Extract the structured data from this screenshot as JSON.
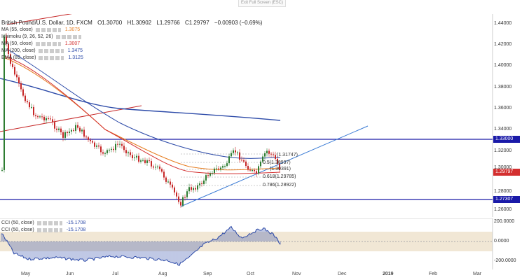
{
  "toolbar": {
    "exit_fullscreen": "Exit Full Screen (ESC)"
  },
  "header": {
    "symbol": "British Pound/U.S. Dollar, 1D, FXCM",
    "open": "O1.30700",
    "high": "H1.30902",
    "low": "L1.29766",
    "close": "C1.29797",
    "change": "−0.00903 (−0.69%)"
  },
  "legend": [
    {
      "label": "MA (55, close)",
      "value": "1.3075",
      "color": "#e67e22"
    },
    {
      "label": "Ichimoku (9, 26, 52, 26)",
      "value": "",
      "color": "#888"
    },
    {
      "label": "MA (50, close)",
      "value": "1.3007",
      "color": "#d32f2f"
    },
    {
      "label": "MA (200, close)",
      "value": "1.3475",
      "color": "#2c4aa8"
    },
    {
      "label": "EMA (89, close)",
      "value": "1.3125",
      "color": "#2c4aa8"
    }
  ],
  "price_axis": [
    "1.44000",
    "1.42000",
    "1.40000",
    "1.38000",
    "1.36000",
    "1.34000",
    "1.32000",
    "1.30000",
    "1.28000",
    "1.26000"
  ],
  "price_tags": [
    {
      "label": "1.33000",
      "color": "#1a1aa8"
    },
    {
      "label": "1.29797",
      "color": "#d32f2f"
    },
    {
      "label": "1.27307",
      "color": "#1a1aa8"
    }
  ],
  "fib_labels": [
    "(1.31747)",
    "0.5(1.30997)",
    "(1.30391)",
    "0.618(1.29785)",
    "0.786(1.28922)"
  ],
  "cci": {
    "legend": [
      {
        "label": "CCI (50, close)",
        "value": "-15.1708"
      },
      {
        "label": "CCI (50, close)",
        "value": "-15.1708"
      }
    ],
    "axis": [
      "200.0000",
      "0.0000",
      "-200.0000"
    ]
  },
  "time_axis": [
    "May",
    "Jun",
    "Jul",
    "Aug",
    "Sep",
    "Oct",
    "Nov",
    "Dec",
    "2019",
    "Feb",
    "Mar"
  ]
}
